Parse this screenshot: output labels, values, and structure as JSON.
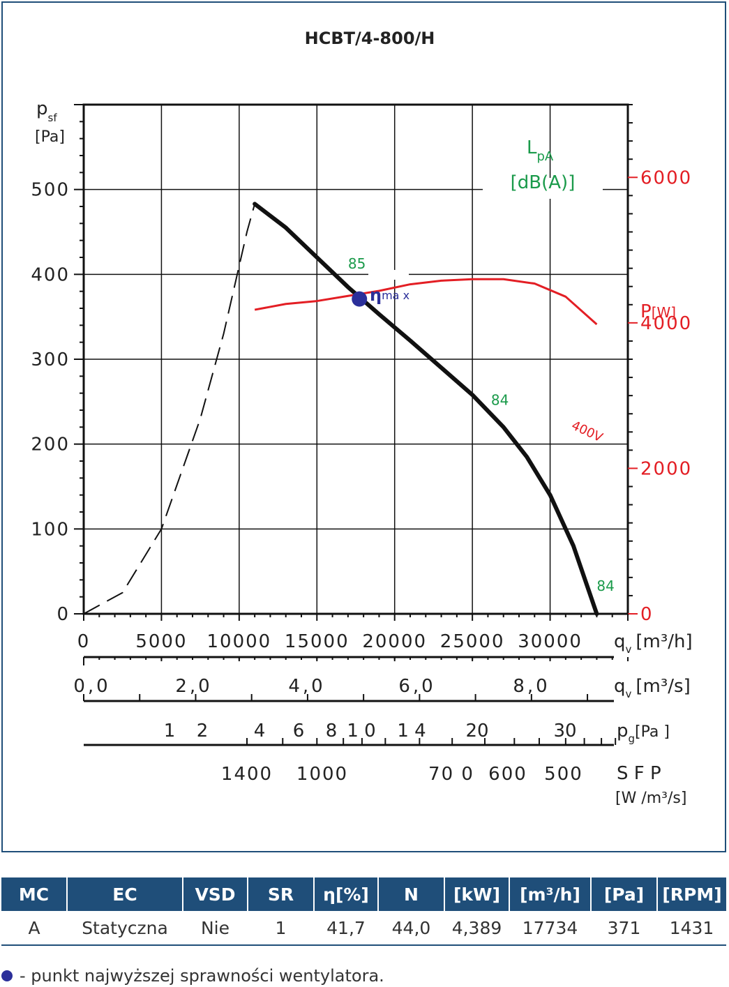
{
  "chart_data": {
    "type": "line",
    "title": "HCBT/4-800/H",
    "y_left": {
      "label_main": "p",
      "label_sub": "sf",
      "unit": "[Pa]",
      "ticks": [
        "0",
        "100",
        "200",
        "300",
        "400",
        "500"
      ],
      "range": [
        0,
        500
      ]
    },
    "y_right": {
      "label_main": "P",
      "unit": "[W]",
      "ticks": [
        "0",
        "2000",
        "4000",
        "6000"
      ],
      "range": [
        0,
        6000
      ],
      "color": "#e31e24"
    },
    "x_axes": [
      {
        "name": "qv_m3h",
        "label_main": "q",
        "label_sub": "v",
        "unit": "[m³/h]",
        "ticks": [
          "0",
          "5000",
          "10000",
          "15000",
          "20000",
          "25000",
          "30000"
        ],
        "range": [
          0,
          35000
        ]
      },
      {
        "name": "qv_m3s",
        "label_main": "q",
        "label_sub": "v",
        "unit": "[m³/s]",
        "ticks": [
          "0,0",
          "2,0",
          "4,0",
          "6,0",
          "8,0"
        ]
      },
      {
        "name": "pg",
        "label_main": "p",
        "label_sub": "g",
        "unit": "[Pa ]",
        "ticks": [
          "1",
          "2",
          "4",
          "6",
          "8",
          "1 0",
          "1 4",
          "20",
          "30"
        ]
      },
      {
        "name": "sfp",
        "label_main": "S F P",
        "unit": "[W /m³/s]",
        "ticks": [
          "1400",
          "1000",
          "70 0",
          "600",
          "500"
        ]
      }
    ],
    "lpa_label": {
      "main": "L",
      "sub": "pA",
      "unit": "[dB(A)]",
      "color": "#1a9a4a"
    },
    "series": [
      {
        "name": "",
        "color": "#111111",
        "x": [
          11000,
          13000,
          15000,
          17000,
          19000,
          21000,
          23000,
          25000,
          27000,
          28500,
          30000,
          31500,
          33000
        ],
        "y": [
          483,
          455,
          420,
          385,
          353,
          322,
          290,
          258,
          220,
          185,
          140,
          80,
          0
        ]
      },
      {
        "name": "400V",
        "color": "#e31e24",
        "axis": "right",
        "x": [
          11000,
          13000,
          15000,
          17000,
          19000,
          21000,
          23000,
          25000,
          27000,
          29000,
          31000,
          33000
        ],
        "y": [
          4180,
          4260,
          4300,
          4370,
          4440,
          4530,
          4580,
          4600,
          4600,
          4540,
          4360,
          3980
        ]
      }
    ],
    "system_curve": {
      "x": [
        0,
        2500,
        5000,
        7500,
        9000,
        10500,
        11000
      ],
      "y": [
        0,
        25,
        100,
        230,
        330,
        450,
        483
      ]
    },
    "efficiency_point": {
      "x": 17734,
      "y": 371,
      "label_main": "η",
      "label_sub": "ma x",
      "color": "#2b2f9a"
    },
    "sound_labels": [
      {
        "text": "85",
        "x": 17000,
        "y": 407
      },
      {
        "text": "84",
        "x": 26200,
        "y": 246
      },
      {
        "text": "84",
        "x": 33000,
        "y": 27
      }
    ],
    "grid": true
  },
  "table": {
    "headers": [
      "MC",
      "EC",
      "VSD",
      "SR",
      "η[%]",
      "N",
      "[kW]",
      "[m³/h]",
      "[Pa]",
      "[RPM]"
    ],
    "row": [
      "A",
      "Statyczna",
      "Nie",
      "1",
      "41,7",
      "44,0",
      "4,389",
      "17734",
      "371",
      "1431"
    ]
  },
  "footnote": "- punkt najwyższej sprawności wentylatora."
}
